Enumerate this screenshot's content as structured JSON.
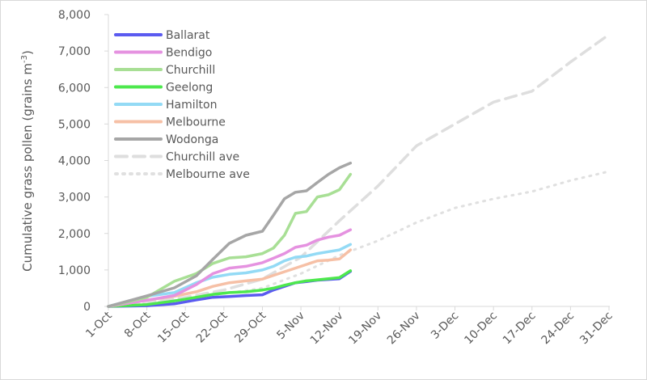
{
  "chart_data": {
    "type": "line",
    "title": "",
    "xlabel": "",
    "ylabel": "Cumulative grass pollen (grains m",
    "ylabel_sup": "-3",
    "ylabel_end": ")",
    "ylim": [
      0,
      8000
    ],
    "yticks": [
      "0",
      "1,000",
      "2,000",
      "3,000",
      "4,000",
      "5,000",
      "6,000",
      "7,000",
      "8,000"
    ],
    "ytick_values": [
      0,
      1000,
      2000,
      3000,
      4000,
      5000,
      6000,
      7000,
      8000
    ],
    "xlim": [
      "1-Oct",
      "31-Dec"
    ],
    "xticks": [
      "1-Oct",
      "8-Oct",
      "15-Oct",
      "22-Oct",
      "29-Oct",
      "5-Nov",
      "12-Nov",
      "19-Nov",
      "26-Nov",
      "3-Dec",
      "10-Dec",
      "17-Dec",
      "24-Dec",
      "31-Dec"
    ],
    "grid": false,
    "legend": "top-left",
    "x_cities": [
      "1-Oct",
      "8-Oct",
      "13-Oct",
      "17-Oct",
      "20-Oct",
      "23-Oct",
      "26-Oct",
      "29-Oct",
      "31-Oct",
      "2-Nov",
      "4-Nov",
      "6-Nov",
      "8-Nov",
      "10-Nov",
      "12-Nov",
      "14-Nov"
    ],
    "x_ave": [
      "1-Oct",
      "8-Oct",
      "15-Oct",
      "22-Oct",
      "29-Oct",
      "5-Nov",
      "12-Nov",
      "19-Nov",
      "26-Nov",
      "3-Dec",
      "10-Dec",
      "17-Dec",
      "24-Dec",
      "31-Dec"
    ],
    "series": [
      {
        "name": "Ballarat",
        "color": "#5b5bf0",
        "style": "solid",
        "x": "x_cities",
        "values": [
          0,
          20,
          70,
          180,
          250,
          270,
          300,
          320,
          450,
          550,
          650,
          680,
          720,
          740,
          760,
          960
        ]
      },
      {
        "name": "Bendigo",
        "color": "#e592e0",
        "style": "solid",
        "x": "x_cities",
        "values": [
          0,
          170,
          300,
          600,
          900,
          1050,
          1100,
          1200,
          1320,
          1450,
          1620,
          1680,
          1820,
          1900,
          1950,
          2100
        ]
      },
      {
        "name": "Churchill",
        "color": "#a8df95",
        "style": "solid",
        "x": "x_cities",
        "values": [
          0,
          250,
          690,
          900,
          1180,
          1330,
          1360,
          1450,
          1600,
          1950,
          2550,
          2600,
          3000,
          3060,
          3200,
          3620
        ]
      },
      {
        "name": "Geelong",
        "color": "#4de84d",
        "style": "solid",
        "x": "x_cities",
        "values": [
          0,
          50,
          150,
          250,
          330,
          380,
          400,
          450,
          500,
          580,
          650,
          700,
          730,
          760,
          790,
          980
        ]
      },
      {
        "name": "Hamilton",
        "color": "#93daf5",
        "style": "solid",
        "x": "x_cities",
        "values": [
          0,
          280,
          380,
          650,
          800,
          880,
          920,
          1000,
          1100,
          1250,
          1350,
          1380,
          1450,
          1500,
          1550,
          1700
        ]
      },
      {
        "name": "Melbourne",
        "color": "#f6c0a6",
        "style": "solid",
        "x": "x_cities",
        "values": [
          0,
          170,
          280,
          400,
          550,
          650,
          700,
          750,
          850,
          950,
          1050,
          1150,
          1250,
          1270,
          1300,
          1550
        ]
      },
      {
        "name": "Wodonga",
        "color": "#a6a6a6",
        "style": "solid",
        "x": "x_cities",
        "values": [
          0,
          290,
          510,
          840,
          1290,
          1730,
          1950,
          2060,
          2500,
          2950,
          3130,
          3170,
          3400,
          3620,
          3800,
          3930
        ]
      },
      {
        "name": "Churchill ave",
        "color": "#dedede",
        "style": "dashed",
        "x": "x_ave",
        "values": [
          0,
          100,
          250,
          450,
          750,
          1350,
          2350,
          3300,
          4400,
          5000,
          5600,
          5900,
          6700,
          7450
        ]
      },
      {
        "name": "Melbourne ave",
        "color": "#e0e0e0",
        "style": "dotted",
        "x": "x_ave",
        "values": [
          0,
          100,
          200,
          350,
          500,
          900,
          1400,
          1800,
          2300,
          2700,
          2950,
          3150,
          3450,
          3700
        ]
      }
    ]
  }
}
